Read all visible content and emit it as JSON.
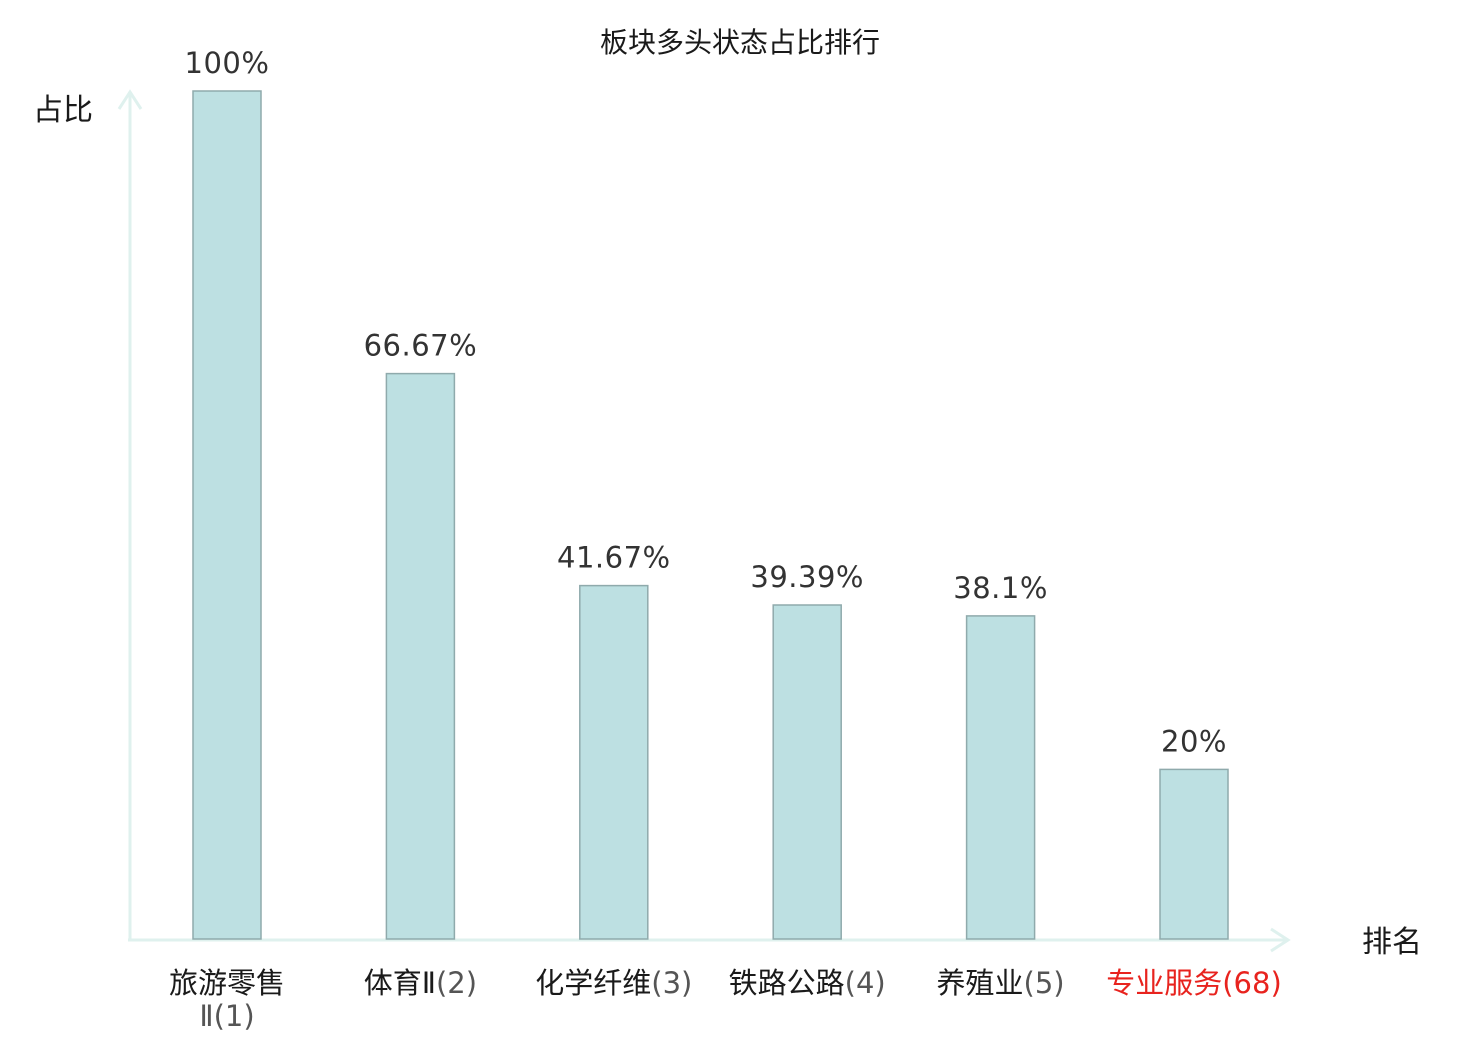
{
  "chart_data": {
    "type": "bar",
    "title": "板块多头状态占比排行",
    "xlabel": "排名",
    "ylabel": "占比",
    "ylim": [
      0,
      100
    ],
    "grid": false,
    "value_suffix": "%",
    "categories": [
      {
        "name": "旅游零售Ⅱ",
        "rank": "(1)",
        "highlight": false
      },
      {
        "name": "体育Ⅱ",
        "rank": "(2)",
        "highlight": false
      },
      {
        "name": "化学纤维",
        "rank": "(3)",
        "highlight": false
      },
      {
        "name": "铁路公路",
        "rank": "(4)",
        "highlight": false
      },
      {
        "name": "养殖业",
        "rank": "(5)",
        "highlight": false
      },
      {
        "name": "专业服务",
        "rank": "(68)",
        "highlight": true
      }
    ],
    "values": [
      100,
      66.67,
      41.67,
      39.39,
      38.1,
      20
    ],
    "value_labels": [
      "100%",
      "66.67%",
      "41.67%",
      "39.39%",
      "38.1%",
      "20%"
    ]
  },
  "colors": {
    "bar_fill": "#bde0e2",
    "bar_stroke": "#8faaac",
    "axis": "#dff1ee",
    "text": "#1a1a1a",
    "value_text": "#333333",
    "rank_text": "#555555",
    "highlight": "#e8231e"
  }
}
